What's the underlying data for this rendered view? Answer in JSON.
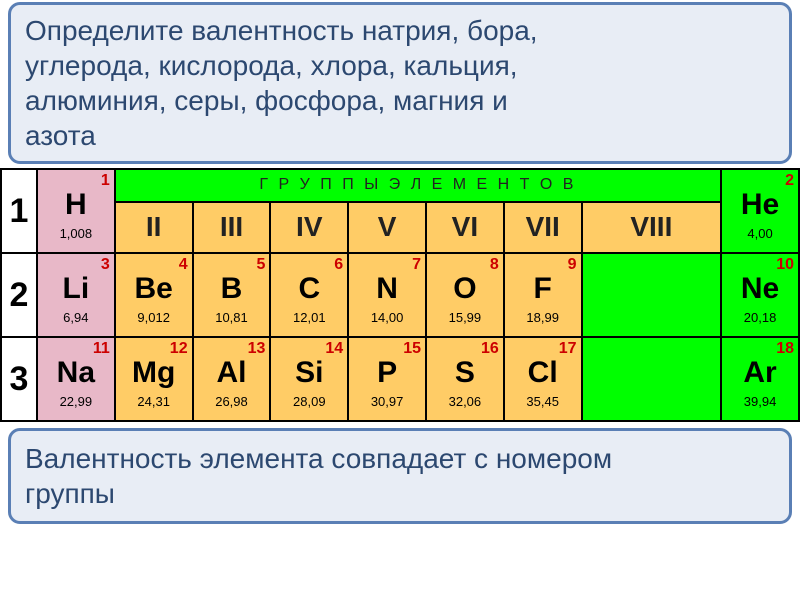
{
  "task": {
    "line1": "Определите валентность натрия, бора,",
    "line2": "углерода, кислорода, хлора, кальция,",
    "line3": "алюминия, серы, фосфора, магния и",
    "line4": "азота"
  },
  "groups_header": "Г Р У П П Ы   Э Л Е М Е Н Т О В",
  "group_nums": [
    "II",
    "III",
    "IV",
    "V",
    "VI",
    "VII",
    "VIII"
  ],
  "periods": [
    "1",
    "2",
    "3"
  ],
  "elements": {
    "H": {
      "an": "1",
      "sym": "H",
      "mass": "1,008",
      "cat": "a"
    },
    "He": {
      "an": "2",
      "sym": "He",
      "mass": "4,00",
      "cat": "c"
    },
    "Li": {
      "an": "3",
      "sym": "Li",
      "mass": "6,94",
      "cat": "a"
    },
    "Be": {
      "an": "4",
      "sym": "Be",
      "mass": "9,012",
      "cat": "b"
    },
    "B": {
      "an": "5",
      "sym": "B",
      "mass": "10,81",
      "cat": "b"
    },
    "C": {
      "an": "6",
      "sym": "C",
      "mass": "12,01",
      "cat": "b"
    },
    "N": {
      "an": "7",
      "sym": "N",
      "mass": "14,00",
      "cat": "b"
    },
    "O": {
      "an": "8",
      "sym": "O",
      "mass": "15,99",
      "cat": "b"
    },
    "F": {
      "an": "9",
      "sym": "F",
      "mass": "18,99",
      "cat": "b"
    },
    "Ne": {
      "an": "10",
      "sym": "Ne",
      "mass": "20,18",
      "cat": "c"
    },
    "Na": {
      "an": "11",
      "sym": "Na",
      "mass": "22,99",
      "cat": "a"
    },
    "Mg": {
      "an": "12",
      "sym": "Mg",
      "mass": "24,31",
      "cat": "b"
    },
    "Al": {
      "an": "13",
      "sym": "Al",
      "mass": "26,98",
      "cat": "b"
    },
    "Si": {
      "an": "14",
      "sym": "Si",
      "mass": "28,09",
      "cat": "b"
    },
    "P": {
      "an": "15",
      "sym": "P",
      "mass": "30,97",
      "cat": "b"
    },
    "S": {
      "an": "16",
      "sym": "S",
      "mass": "32,06",
      "cat": "b"
    },
    "Cl": {
      "an": "17",
      "sym": "Cl",
      "mass": "35,45",
      "cat": "b"
    },
    "Ar": {
      "an": "18",
      "sym": "Ar",
      "mass": "39,94",
      "cat": "c"
    }
  },
  "footer": {
    "line1": "Валентность элемента совпадает с номером",
    "line2": "группы"
  },
  "colors": {
    "box_border": "#5a7fb5",
    "box_bg": "#e8edf5",
    "box_text": "#2c4870",
    "green": "#00ff00",
    "orange": "#ffcc66",
    "pink": "#e8b8c8",
    "atomic_num": "#cc0000"
  }
}
